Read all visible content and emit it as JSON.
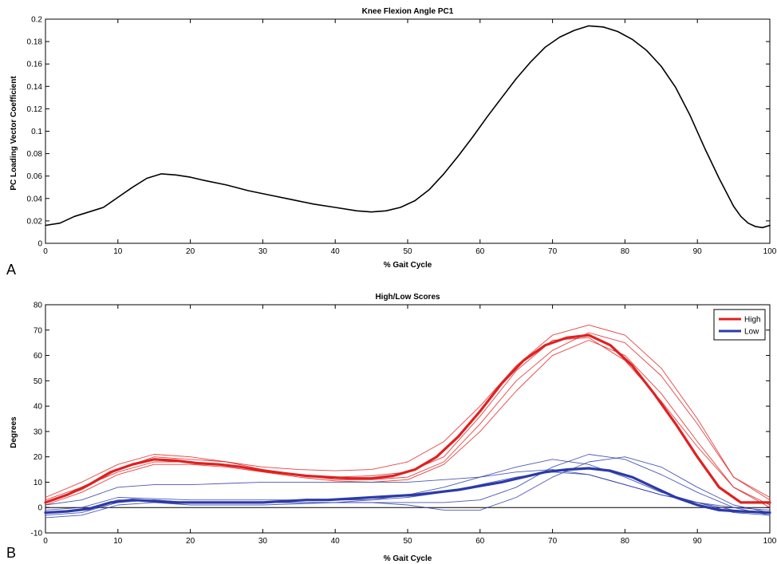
{
  "chart_data": [
    {
      "panel_label": "A",
      "type": "line",
      "title": "Knee Flexion Angle PC1",
      "xlabel": "% Gait Cycle",
      "ylabel": "PC Loading Vector Coefficient",
      "xlim": [
        0,
        100
      ],
      "ylim": [
        0,
        0.2
      ],
      "xticks": [
        "0",
        "10",
        "20",
        "30",
        "40",
        "50",
        "60",
        "70",
        "80",
        "90",
        "100"
      ],
      "yticks": [
        "0",
        "0.02",
        "0.04",
        "0.06",
        "0.08",
        "0.1",
        "0.12",
        "0.14",
        "0.16",
        "0.18",
        "0.2"
      ],
      "grid": false,
      "series": [
        {
          "color": "#000000",
          "x": [
            0,
            2,
            4,
            6,
            8,
            10,
            12,
            14,
            16,
            18,
            20,
            22,
            25,
            28,
            31,
            34,
            37,
            40,
            43,
            45,
            47,
            49,
            51,
            53,
            55,
            57,
            59,
            61,
            63,
            65,
            67,
            69,
            71,
            73,
            75,
            77,
            79,
            81,
            83,
            85,
            87,
            89,
            91,
            93,
            95,
            96,
            97,
            98,
            99,
            100
          ],
          "y": [
            0.016,
            0.018,
            0.024,
            0.028,
            0.032,
            0.041,
            0.05,
            0.058,
            0.062,
            0.061,
            0.059,
            0.056,
            0.052,
            0.047,
            0.043,
            0.039,
            0.035,
            0.032,
            0.029,
            0.028,
            0.029,
            0.032,
            0.038,
            0.048,
            0.062,
            0.078,
            0.095,
            0.113,
            0.13,
            0.147,
            0.162,
            0.175,
            0.184,
            0.19,
            0.194,
            0.193,
            0.189,
            0.182,
            0.172,
            0.158,
            0.139,
            0.114,
            0.085,
            0.058,
            0.033,
            0.024,
            0.018,
            0.015,
            0.014,
            0.016
          ]
        }
      ]
    },
    {
      "panel_label": "B",
      "type": "line",
      "title": "High/Low Scores",
      "xlabel": "% Gait Cycle",
      "ylabel": "Degrees",
      "xlim": [
        0,
        100
      ],
      "ylim": [
        -10,
        80
      ],
      "xticks": [
        "0",
        "10",
        "20",
        "30",
        "40",
        "50",
        "60",
        "70",
        "80",
        "90",
        "100"
      ],
      "yticks": [
        "-10",
        "0",
        "10",
        "20",
        "30",
        "40",
        "50",
        "60",
        "70",
        "80"
      ],
      "grid": false,
      "legend": {
        "position": "top-right",
        "entries": [
          {
            "label": "High",
            "color": "#e02020"
          },
          {
            "label": "Low",
            "color": "#2b3aa8"
          }
        ]
      },
      "reference_line": {
        "y": 0,
        "color": "#000000"
      },
      "series": [
        {
          "name": "High",
          "role": "mean",
          "color": "#e02020",
          "x": [
            0,
            3,
            6,
            9,
            12,
            15,
            18,
            21,
            24,
            27,
            30,
            33,
            36,
            39,
            42,
            45,
            48,
            51,
            54,
            57,
            60,
            63,
            66,
            69,
            72,
            75,
            78,
            81,
            84,
            87,
            90,
            93,
            96,
            100
          ],
          "y": [
            2,
            5,
            9,
            14,
            17,
            19,
            18.5,
            17.5,
            17,
            16,
            14.5,
            13.5,
            12.5,
            12,
            11.5,
            11.5,
            12.5,
            15,
            20,
            28,
            38,
            49,
            58,
            64,
            67,
            68,
            64,
            56,
            45,
            33,
            20,
            8,
            2,
            2
          ]
        },
        {
          "name": "Low",
          "role": "mean",
          "color": "#2b3aa8",
          "x": [
            0,
            3,
            6,
            9,
            12,
            15,
            18,
            21,
            24,
            27,
            30,
            33,
            36,
            39,
            42,
            45,
            48,
            51,
            54,
            57,
            60,
            63,
            66,
            69,
            72,
            75,
            78,
            81,
            84,
            87,
            90,
            93,
            96,
            100
          ],
          "y": [
            -2,
            -1.5,
            -0.5,
            2,
            3,
            2.5,
            2,
            2,
            2,
            2,
            2,
            2.5,
            3,
            3,
            3.5,
            4,
            4.5,
            5,
            6,
            7,
            8.5,
            10,
            12,
            14,
            15,
            15.5,
            14.5,
            12,
            8,
            4,
            1,
            -1,
            -1.5,
            -2
          ]
        },
        {
          "name": "High",
          "role": "individual",
          "color": "#e02020",
          "x": [
            0,
            5,
            10,
            15,
            20,
            25,
            30,
            35,
            40,
            45,
            50,
            55,
            60,
            65,
            70,
            75,
            80,
            85,
            90,
            95,
            100
          ],
          "y": [
            4,
            10,
            17,
            21,
            20,
            18,
            16,
            15,
            14.5,
            15,
            18,
            26,
            40,
            56,
            68,
            72,
            68,
            55,
            35,
            12,
            4
          ]
        },
        {
          "name": "High",
          "role": "individual",
          "color": "#e02020",
          "x": [
            0,
            5,
            10,
            15,
            20,
            25,
            30,
            35,
            40,
            45,
            50,
            55,
            60,
            65,
            70,
            75,
            80,
            85,
            90,
            95,
            100
          ],
          "y": [
            1,
            6,
            13,
            17,
            17,
            16,
            14,
            12,
            10.5,
            10,
            11,
            17,
            30,
            46,
            60,
            66,
            60,
            45,
            26,
            8,
            0
          ]
        },
        {
          "name": "High",
          "role": "individual",
          "color": "#e02020",
          "x": [
            0,
            5,
            10,
            15,
            20,
            25,
            30,
            35,
            40,
            45,
            50,
            55,
            60,
            65,
            70,
            75,
            80,
            85,
            90,
            95,
            100
          ],
          "y": [
            3,
            8,
            14,
            18,
            18,
            17,
            15,
            13,
            12,
            12.5,
            14,
            20,
            36,
            54,
            66,
            67,
            58,
            42,
            24,
            8,
            1
          ]
        },
        {
          "name": "High",
          "role": "individual",
          "color": "#e02020",
          "x": [
            0,
            5,
            10,
            15,
            20,
            25,
            30,
            35,
            40,
            45,
            50,
            55,
            60,
            65,
            70,
            75,
            80,
            85,
            90,
            95,
            100
          ],
          "y": [
            2,
            7,
            15,
            20,
            19,
            18,
            15,
            13,
            11,
            11,
            12,
            18,
            33,
            50,
            62,
            69,
            65,
            52,
            33,
            12,
            3
          ]
        },
        {
          "name": "Low",
          "role": "individual",
          "color": "#2b3aa8",
          "x": [
            0,
            5,
            10,
            15,
            20,
            25,
            30,
            35,
            40,
            45,
            50,
            55,
            60,
            65,
            70,
            75,
            80,
            85,
            90,
            95,
            100
          ],
          "y": [
            1,
            3,
            8,
            9,
            9,
            9.5,
            10,
            10,
            10,
            10,
            10,
            11,
            12,
            14,
            15,
            13,
            9,
            5,
            2,
            0,
            -1
          ]
        },
        {
          "name": "Low",
          "role": "individual",
          "color": "#2b3aa8",
          "x": [
            0,
            5,
            10,
            15,
            20,
            25,
            30,
            35,
            40,
            45,
            50,
            55,
            60,
            65,
            70,
            75,
            80,
            85,
            90,
            95,
            100
          ],
          "y": [
            -3,
            -2,
            2,
            3,
            2,
            2,
            2,
            2,
            2,
            3,
            5,
            8,
            12,
            16,
            19,
            17,
            12,
            6,
            2,
            -2,
            -3
          ]
        },
        {
          "name": "Low",
          "role": "individual",
          "color": "#2b3aa8",
          "x": [
            0,
            5,
            10,
            15,
            20,
            25,
            30,
            35,
            40,
            45,
            50,
            55,
            60,
            65,
            70,
            75,
            80,
            85,
            90,
            95,
            100
          ],
          "y": [
            -4,
            -3,
            1,
            2,
            1,
            1,
            1,
            1.5,
            2,
            2,
            2,
            2,
            3,
            8,
            16,
            21,
            19,
            13,
            6,
            0,
            -3
          ]
        },
        {
          "name": "Low",
          "role": "individual",
          "color": "#2b3aa8",
          "x": [
            0,
            5,
            10,
            15,
            20,
            25,
            30,
            35,
            40,
            45,
            50,
            55,
            60,
            65,
            70,
            75,
            80,
            85,
            90,
            95,
            100
          ],
          "y": [
            -2,
            -1,
            3,
            3,
            2,
            2,
            2,
            2,
            2,
            2,
            1,
            -1,
            -1,
            4,
            12,
            18,
            20,
            16,
            8,
            1,
            -2
          ]
        },
        {
          "name": "Low",
          "role": "individual",
          "color": "#2b3aa8",
          "x": [
            0,
            5,
            10,
            15,
            20,
            25,
            30,
            35,
            40,
            45,
            50,
            55,
            60,
            65,
            70,
            75,
            80,
            85,
            90,
            95,
            100
          ],
          "y": [
            -1,
            0,
            4,
            3.5,
            3,
            3,
            3,
            3,
            3,
            3,
            4,
            6,
            9,
            12,
            14,
            13,
            9,
            5,
            2,
            -1,
            -2
          ]
        }
      ]
    }
  ]
}
